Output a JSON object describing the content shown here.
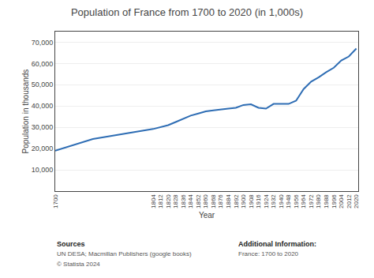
{
  "chart_data": {
    "type": "line",
    "title": "Population of France from 1700 to 2020 (in 1,000s)",
    "xlabel": "Year",
    "ylabel": "Population in thousands",
    "color": "#2e6db4",
    "x": [
      1700,
      1740,
      1804,
      1812,
      1820,
      1828,
      1836,
      1844,
      1852,
      1860,
      1868,
      1876,
      1884,
      1892,
      1900,
      1908,
      1916,
      1924,
      1932,
      1940,
      1948,
      1956,
      1964,
      1972,
      1980,
      1988,
      1996,
      2004,
      2012,
      2020
    ],
    "values": [
      19000,
      24500,
      29200,
      30200,
      31000,
      32500,
      34000,
      35500,
      36500,
      37500,
      38000,
      38500,
      38800,
      39200,
      40500,
      40800,
      39200,
      38800,
      41000,
      41000,
      41000,
      42500,
      48000,
      51500,
      53500,
      55900,
      58000,
      61400,
      63300,
      67000
    ],
    "xlim": [
      1700,
      2022
    ],
    "xticks": [
      1700,
      1804,
      1812,
      1820,
      1828,
      1836,
      1844,
      1852,
      1860,
      1868,
      1876,
      1884,
      1892,
      1900,
      1908,
      1916,
      1924,
      1932,
      1940,
      1948,
      1956,
      1964,
      1972,
      1980,
      1988,
      1996,
      2004,
      2012,
      2020
    ],
    "ylim": [
      0,
      75000
    ],
    "yticks": [
      {
        "value": 10000,
        "label": "10,000"
      },
      {
        "value": 20000,
        "label": "20,000"
      },
      {
        "value": 30000,
        "label": "30,000"
      },
      {
        "value": 40000,
        "label": "40,000"
      },
      {
        "value": 50000,
        "label": "50,000"
      },
      {
        "value": 60000,
        "label": "60,000"
      },
      {
        "value": 70000,
        "label": "70,000"
      }
    ],
    "grid": true,
    "annotations": [
      [
        "Sources",
        "UN DESA; Macmillan Publishers (google books)",
        "© Statista 2024"
      ],
      [
        "Additional Information:",
        "France: 1700 to 2020"
      ]
    ]
  }
}
